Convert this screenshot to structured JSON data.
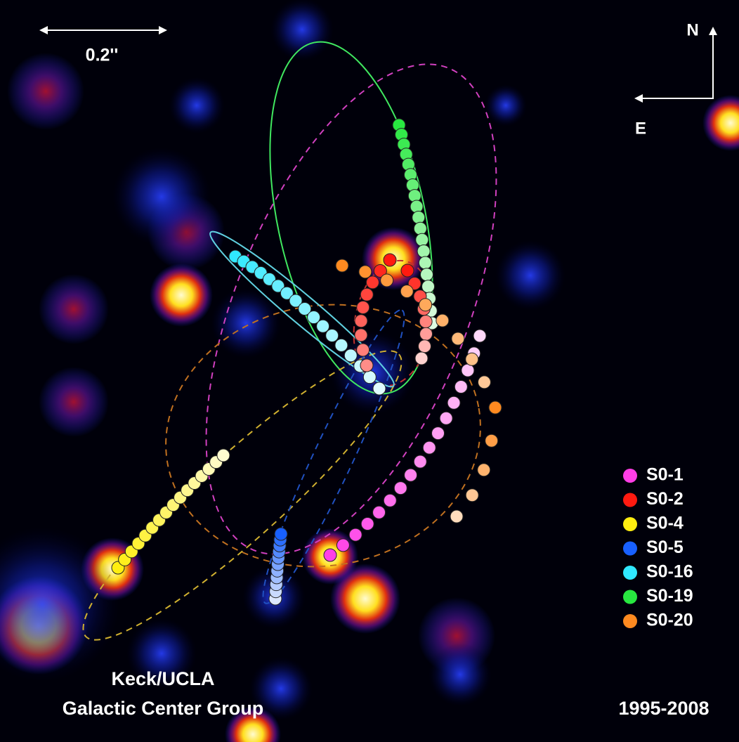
{
  "scale_bar": {
    "label": "0.2''"
  },
  "compass": {
    "north": "N",
    "east": "E"
  },
  "legend": {
    "items": [
      {
        "name": "S0-1",
        "color": "#ff3ee6"
      },
      {
        "name": "S0-2",
        "color": "#ff1a10"
      },
      {
        "name": "S0-4",
        "color": "#ffee10"
      },
      {
        "name": "S0-5",
        "color": "#1860ff"
      },
      {
        "name": "S0-16",
        "color": "#30e8ff"
      },
      {
        "name": "S0-19",
        "color": "#28e840"
      },
      {
        "name": "S0-20",
        "color": "#ff8a20"
      }
    ]
  },
  "credit": {
    "line1": "Keck/UCLA",
    "line2": "Galactic Center Group"
  },
  "date_range": "1995-2008"
}
